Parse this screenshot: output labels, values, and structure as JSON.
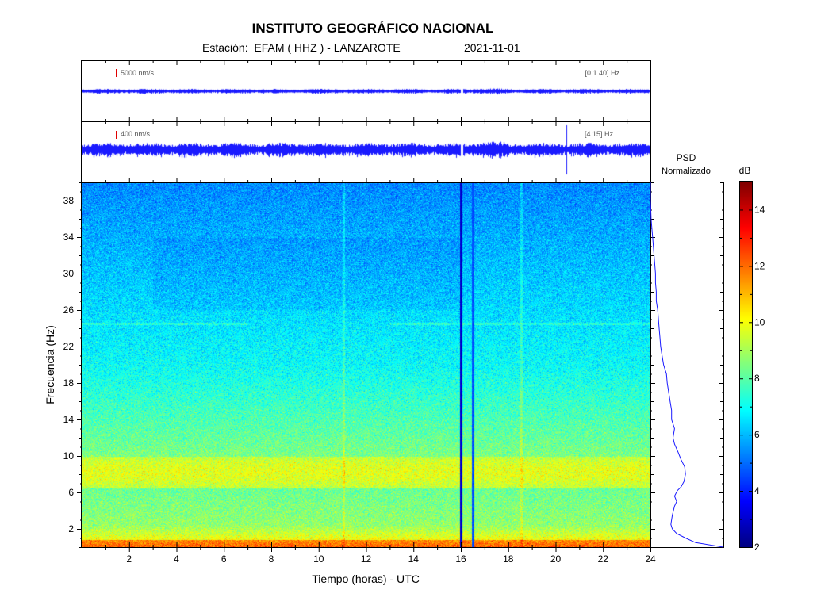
{
  "header": {
    "title": "INSTITUTO GEOGRÁFICO NACIONAL",
    "station_prefix": "Estación:",
    "station": "EFAM ( HHZ ) - LANZAROTE",
    "date": "2021-11-01"
  },
  "chart_data": [
    {
      "type": "line",
      "name": "trace-broadband",
      "scale_label": "5000 nm/s",
      "band_label": "[0.1 40] Hz",
      "xlim": [
        0,
        24
      ],
      "gap_hours": [
        16.0,
        16.05
      ],
      "scale_bar_color": "#e00000",
      "trace_color": "#1a1aff"
    },
    {
      "type": "line",
      "name": "trace-filtered",
      "scale_label": "400 nm/s",
      "band_label": "[4 15] Hz",
      "xlim": [
        0,
        24
      ],
      "gap_hours": [
        16.0,
        16.05
      ],
      "spike_hour": 20.45,
      "trace_color": "#1a1aff"
    },
    {
      "type": "heatmap",
      "name": "spectrogram",
      "xlabel": "Tiempo (horas) - UTC",
      "ylabel": "Frecuencia  (Hz)",
      "xlim": [
        0,
        24
      ],
      "ylim": [
        0,
        40
      ],
      "x_ticks": [
        2,
        4,
        6,
        8,
        10,
        12,
        14,
        16,
        18,
        20,
        22,
        24
      ],
      "y_ticks": [
        2,
        6,
        10,
        14,
        18,
        22,
        26,
        30,
        34,
        38
      ],
      "dark_band_hours": [
        15.95,
        16.05
      ],
      "thin_line_hours": [
        16.5
      ],
      "bright_band_hz": [
        6.5,
        10.0
      ]
    },
    {
      "type": "line",
      "name": "psd-normalized",
      "title_line1": "PSD",
      "title_line2": "Normalizado",
      "ylim": [
        0,
        40
      ],
      "xlim": [
        0,
        1
      ],
      "color": "#1a1aff",
      "points": [
        [
          1.0,
          0.0
        ],
        [
          0.62,
          0.5
        ],
        [
          0.48,
          1.0
        ],
        [
          0.36,
          1.5
        ],
        [
          0.3,
          2.0
        ],
        [
          0.28,
          2.5
        ],
        [
          0.3,
          3.5
        ],
        [
          0.33,
          4.5
        ],
        [
          0.36,
          5.0
        ],
        [
          0.33,
          5.6
        ],
        [
          0.37,
          6.2
        ],
        [
          0.42,
          6.6
        ],
        [
          0.46,
          7.2
        ],
        [
          0.48,
          8.0
        ],
        [
          0.47,
          8.8
        ],
        [
          0.42,
          9.6
        ],
        [
          0.38,
          10.4
        ],
        [
          0.33,
          11.3
        ],
        [
          0.31,
          12.0
        ],
        [
          0.33,
          13.0
        ],
        [
          0.29,
          14.0
        ],
        [
          0.29,
          15.0
        ],
        [
          0.27,
          16.0
        ],
        [
          0.25,
          17.0
        ],
        [
          0.23,
          18.0
        ],
        [
          0.22,
          19.0
        ],
        [
          0.18,
          20.0
        ],
        [
          0.16,
          21.0
        ],
        [
          0.14,
          22.0
        ],
        [
          0.13,
          23.0
        ],
        [
          0.12,
          24.0
        ],
        [
          0.11,
          25.0
        ],
        [
          0.1,
          26.0
        ],
        [
          0.08,
          27.0
        ],
        [
          0.08,
          28.0
        ],
        [
          0.07,
          29.0
        ],
        [
          0.07,
          30.0
        ],
        [
          0.06,
          31.0
        ],
        [
          0.05,
          32.0
        ],
        [
          0.04,
          33.0
        ],
        [
          0.03,
          34.0
        ],
        [
          0.02,
          35.0
        ],
        [
          0.01,
          36.0
        ],
        [
          0.005,
          37.0
        ],
        [
          0.0,
          38.0
        ],
        [
          0.0,
          40.0
        ]
      ]
    },
    {
      "type": "heatmap",
      "name": "colorbar",
      "label": "dB",
      "ylim": [
        2,
        15
      ],
      "ticks": [
        2,
        4,
        6,
        8,
        10,
        12,
        14
      ],
      "colormap": "jet"
    }
  ]
}
